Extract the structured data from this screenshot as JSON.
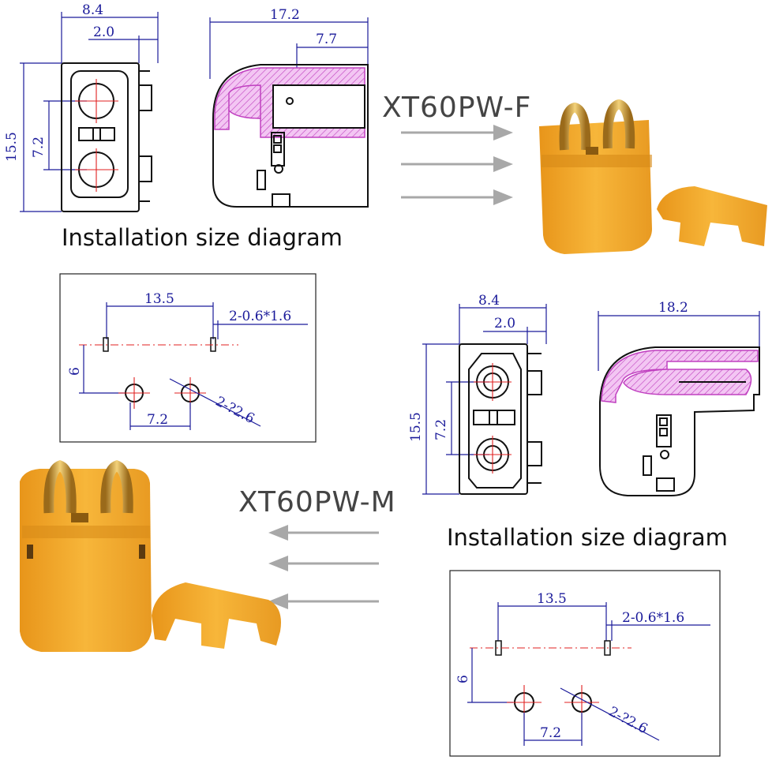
{
  "top_left_drawing": {
    "front_view": {
      "width": "8.4",
      "offset": "2.0",
      "height": "15.5",
      "pitch": "7.2"
    },
    "side_view": {
      "length": "17.2",
      "depth": "7.7"
    }
  },
  "caption_top": "Installation size diagram",
  "caption_bottom": "Installation size diagram",
  "model_female": "XT60PW-F",
  "model_male": "XT60PW-M",
  "footprint_top": {
    "span": "13.5",
    "slot": "2-0.6*1.6",
    "vertical": "6",
    "pitch": "7.2",
    "hole": "2-?2.6"
  },
  "footprint_bottom": {
    "span": "13.5",
    "slot": "2-0.6*1.6",
    "vertical": "6",
    "pitch": "7.2",
    "hole": "2-?2.6"
  },
  "bottom_right_drawing": {
    "front_view": {
      "width": "8.4",
      "offset": "2.0",
      "height": "15.5",
      "pitch": "7.2"
    },
    "side_view": {
      "length": "18.2"
    }
  },
  "colors": {
    "dimension": "#1a1a9a",
    "centerline": "#e02020",
    "hatch": "#c040c0",
    "connector": "#f2a82a",
    "arrow": "#a8a8a8"
  }
}
